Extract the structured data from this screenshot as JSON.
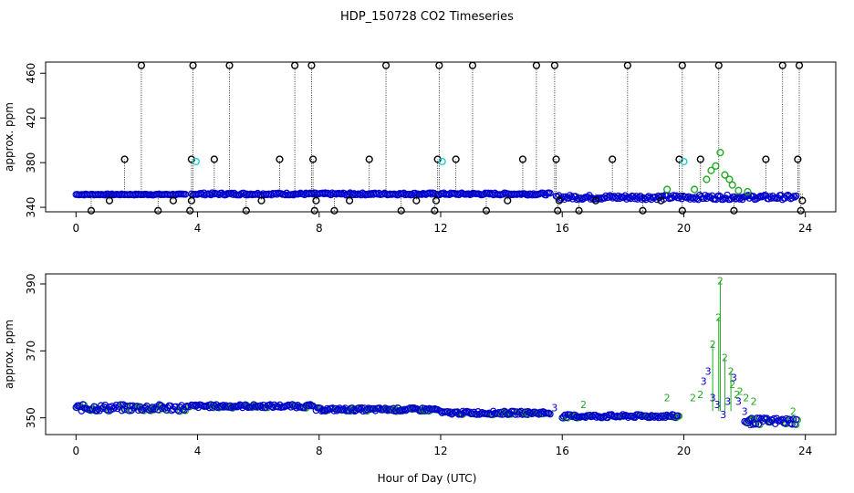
{
  "chart_data": [
    {
      "type": "scatter",
      "panel": "top",
      "title": "HDP_150728  CO2 Timeseries",
      "xlabel": "",
      "ylabel": "approx. ppm",
      "xlim": [
        -1,
        25
      ],
      "ylim": [
        336,
        470
      ],
      "xticks": [
        0,
        4,
        8,
        12,
        16,
        20,
        24
      ],
      "yticks": [
        340,
        380,
        420,
        460
      ],
      "series": [
        {
          "name": "baseline",
          "color": "#0000cc",
          "segments": [
            {
              "x0": 0.0,
              "x1": 3.6,
              "y": [
                351,
                352
              ]
            },
            {
              "x0": 3.8,
              "x1": 15.6,
              "y": [
                351,
                353
              ]
            },
            {
              "x0": 15.8,
              "x1": 23.7,
              "y": [
                347,
                351
              ]
            }
          ]
        },
        {
          "name": "spikes-high",
          "color": "#000000",
          "points": [
            {
              "x": 2.15,
              "y": 467
            },
            {
              "x": 3.85,
              "y": 467
            },
            {
              "x": 5.05,
              "y": 467
            },
            {
              "x": 7.2,
              "y": 467
            },
            {
              "x": 7.75,
              "y": 467
            },
            {
              "x": 10.2,
              "y": 467
            },
            {
              "x": 11.95,
              "y": 467
            },
            {
              "x": 13.05,
              "y": 467
            },
            {
              "x": 15.15,
              "y": 467
            },
            {
              "x": 15.75,
              "y": 467
            },
            {
              "x": 18.15,
              "y": 467
            },
            {
              "x": 19.95,
              "y": 467
            },
            {
              "x": 21.15,
              "y": 467
            },
            {
              "x": 23.25,
              "y": 467
            },
            {
              "x": 23.8,
              "y": 467
            }
          ]
        },
        {
          "name": "spikes-mid",
          "color": "#000000",
          "points": [
            {
              "x": 1.6,
              "y": 383
            },
            {
              "x": 3.8,
              "y": 383
            },
            {
              "x": 4.55,
              "y": 383
            },
            {
              "x": 6.7,
              "y": 383
            },
            {
              "x": 7.8,
              "y": 383
            },
            {
              "x": 9.65,
              "y": 383
            },
            {
              "x": 11.9,
              "y": 383
            },
            {
              "x": 12.5,
              "y": 383
            },
            {
              "x": 14.7,
              "y": 383
            },
            {
              "x": 15.8,
              "y": 383
            },
            {
              "x": 17.65,
              "y": 383
            },
            {
              "x": 19.85,
              "y": 383
            },
            {
              "x": 20.55,
              "y": 383
            },
            {
              "x": 22.7,
              "y": 383
            },
            {
              "x": 23.75,
              "y": 383
            }
          ]
        },
        {
          "name": "spikes-low",
          "color": "#000000",
          "points": [
            {
              "x": 0.5,
              "y": 337
            },
            {
              "x": 1.1,
              "y": 346
            },
            {
              "x": 2.7,
              "y": 337
            },
            {
              "x": 3.2,
              "y": 346
            },
            {
              "x": 3.75,
              "y": 337
            },
            {
              "x": 3.8,
              "y": 346
            },
            {
              "x": 5.6,
              "y": 337
            },
            {
              "x": 6.1,
              "y": 346
            },
            {
              "x": 7.85,
              "y": 337
            },
            {
              "x": 7.9,
              "y": 346
            },
            {
              "x": 8.5,
              "y": 337
            },
            {
              "x": 9.0,
              "y": 346
            },
            {
              "x": 10.7,
              "y": 337
            },
            {
              "x": 11.2,
              "y": 346
            },
            {
              "x": 11.8,
              "y": 337
            },
            {
              "x": 11.85,
              "y": 346
            },
            {
              "x": 13.5,
              "y": 337
            },
            {
              "x": 14.2,
              "y": 346
            },
            {
              "x": 15.85,
              "y": 337
            },
            {
              "x": 15.9,
              "y": 346
            },
            {
              "x": 16.55,
              "y": 337
            },
            {
              "x": 17.1,
              "y": 346
            },
            {
              "x": 18.65,
              "y": 337
            },
            {
              "x": 19.25,
              "y": 346
            },
            {
              "x": 19.95,
              "y": 337
            },
            {
              "x": 21.65,
              "y": 337
            },
            {
              "x": 23.85,
              "y": 337
            },
            {
              "x": 23.9,
              "y": 346
            }
          ]
        },
        {
          "name": "cyan-outliers",
          "color": "#22cccc",
          "points": [
            {
              "x": 3.95,
              "y": 381
            },
            {
              "x": 12.05,
              "y": 381
            },
            {
              "x": 20.0,
              "y": 381
            }
          ]
        },
        {
          "name": "event-cluster",
          "color": "#22aa22",
          "points": [
            {
              "x": 19.45,
              "y": 356
            },
            {
              "x": 20.35,
              "y": 356
            },
            {
              "x": 20.75,
              "y": 365
            },
            {
              "x": 20.9,
              "y": 373
            },
            {
              "x": 21.05,
              "y": 377
            },
            {
              "x": 21.2,
              "y": 389
            },
            {
              "x": 21.35,
              "y": 369
            },
            {
              "x": 21.5,
              "y": 365
            },
            {
              "x": 21.6,
              "y": 360
            },
            {
              "x": 21.8,
              "y": 355
            },
            {
              "x": 22.1,
              "y": 354
            }
          ]
        }
      ]
    },
    {
      "type": "scatter",
      "panel": "bottom",
      "title": "",
      "xlabel": "Hour of Day (UTC)",
      "ylabel": "approx. ppm",
      "xlim": [
        -1,
        25
      ],
      "ylim": [
        345,
        393
      ],
      "xticks": [
        0,
        4,
        8,
        12,
        16,
        20,
        24
      ],
      "yticks": [
        350,
        370,
        390
      ],
      "series": [
        {
          "name": "filtered-blue",
          "color": "#0000cc",
          "segments": [
            {
              "x0": 0.0,
              "x1": 3.7,
              "y": [
                352,
                354
              ]
            },
            {
              "x0": 3.8,
              "x1": 7.8,
              "y": [
                353,
                354
              ]
            },
            {
              "x0": 7.9,
              "x1": 11.9,
              "y": [
                352,
                353
              ]
            },
            {
              "x0": 12.0,
              "x1": 15.6,
              "y": [
                351,
                352
              ]
            },
            {
              "x0": 16.0,
              "x1": 19.8,
              "y": [
                350,
                351
              ]
            },
            {
              "x0": 22.0,
              "x1": 23.7,
              "y": [
                348,
                350
              ]
            }
          ]
        },
        {
          "name": "filtered-green",
          "color": "#22aa22",
          "marker": "2",
          "points": [
            {
              "x": 16.7,
              "y": 354
            },
            {
              "x": 19.45,
              "y": 356
            },
            {
              "x": 20.3,
              "y": 356
            },
            {
              "x": 20.55,
              "y": 357
            },
            {
              "x": 20.95,
              "y": 372
            },
            {
              "x": 21.15,
              "y": 380
            },
            {
              "x": 21.2,
              "y": 391
            },
            {
              "x": 21.35,
              "y": 368
            },
            {
              "x": 21.55,
              "y": 364
            },
            {
              "x": 21.6,
              "y": 360
            },
            {
              "x": 21.75,
              "y": 357
            },
            {
              "x": 21.85,
              "y": 358
            },
            {
              "x": 22.05,
              "y": 356
            },
            {
              "x": 22.3,
              "y": 355
            },
            {
              "x": 23.6,
              "y": 352
            }
          ]
        },
        {
          "name": "filtered-event-blue",
          "color": "#0000cc",
          "marker": "3",
          "points": [
            {
              "x": 20.65,
              "y": 361
            },
            {
              "x": 20.8,
              "y": 364
            },
            {
              "x": 20.95,
              "y": 356
            },
            {
              "x": 21.1,
              "y": 354
            },
            {
              "x": 21.3,
              "y": 351
            },
            {
              "x": 21.45,
              "y": 355
            },
            {
              "x": 21.65,
              "y": 362
            },
            {
              "x": 21.8,
              "y": 355
            },
            {
              "x": 22.0,
              "y": 352
            },
            {
              "x": 22.2,
              "y": 348
            },
            {
              "x": 15.75,
              "y": 353
            }
          ]
        }
      ]
    }
  ]
}
